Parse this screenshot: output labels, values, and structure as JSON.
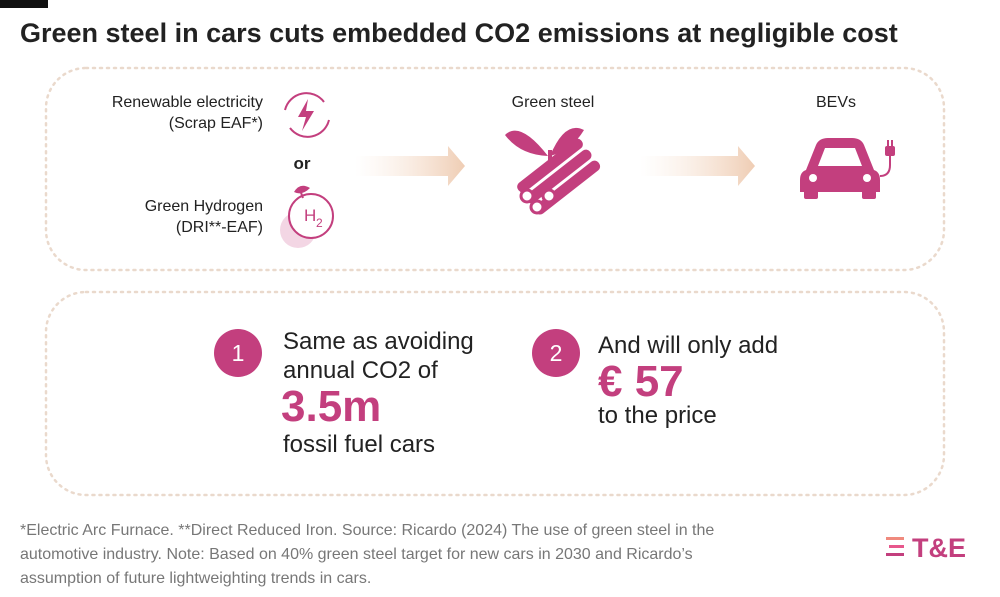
{
  "header": {
    "title": "Green steel in cars cuts embedded CO2 emissions at negligible cost"
  },
  "flow": {
    "inputs": [
      {
        "label": "Renewable electricity",
        "sublabel": "(Scrap EAF*)"
      },
      {
        "label": "Green Hydrogen",
        "sublabel": "(DRI**-EAF)",
        "icon_symbol": "H",
        "icon_subscript": "2"
      }
    ],
    "connector": "or",
    "steps": [
      {
        "label": "Green steel"
      },
      {
        "label": "BEVs"
      }
    ]
  },
  "stats": [
    {
      "number": "1",
      "lines": [
        "Same as avoiding",
        "annual CO2 of"
      ],
      "highlight": "3.5m",
      "after": "fossil fuel cars"
    },
    {
      "number": "2",
      "lines": [
        "And will only add"
      ],
      "highlight": "€ 57",
      "after": "to the price"
    }
  ],
  "footnote": {
    "lines": [
      "*Electric Arc Furnace. **Direct Reduced Iron. Source: Ricardo (2024) The use of green steel in the",
      "automotive industry. Note: Based on 40% green steel target for new cars in 2030 and Ricardo’s",
      "assumption of future lightweighting trends in cars."
    ]
  },
  "logo": "T&E"
}
